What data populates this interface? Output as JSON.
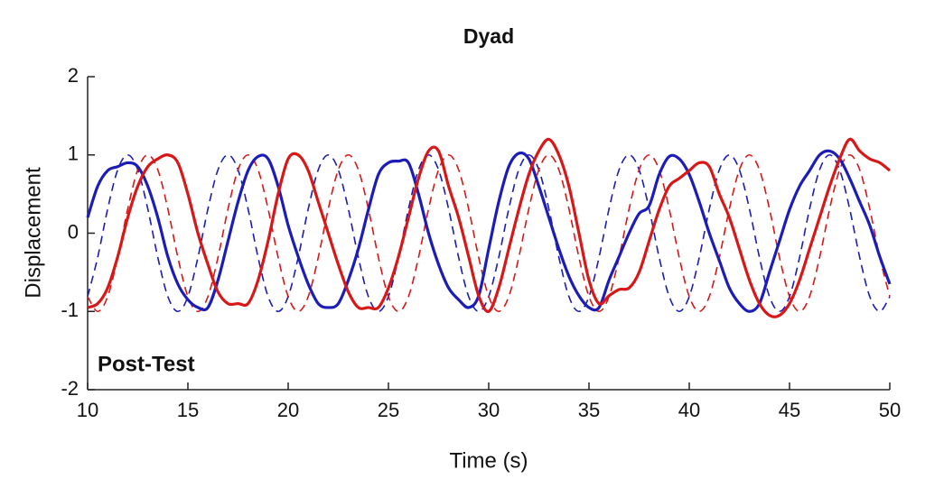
{
  "chart_data": {
    "type": "line",
    "title": "Dyad",
    "xlabel": "Time (s)",
    "ylabel": "Displacement",
    "annotation": "Post-Test",
    "x": [
      10,
      10.5,
      11,
      11.5,
      12,
      12.5,
      13,
      13.5,
      14,
      14.5,
      15,
      15.5,
      16,
      16.5,
      17,
      17.5,
      18,
      18.5,
      19,
      19.5,
      20,
      20.5,
      21,
      21.5,
      22,
      22.5,
      23,
      23.5,
      24,
      24.5,
      25,
      25.5,
      26,
      26.5,
      27,
      27.5,
      28,
      28.5,
      29,
      29.5,
      30,
      30.5,
      31,
      31.5,
      32,
      32.5,
      33,
      33.5,
      34,
      34.5,
      35,
      35.5,
      36,
      36.5,
      37,
      37.5,
      38,
      38.5,
      39,
      39.5,
      40,
      40.5,
      41,
      41.5,
      42,
      42.5,
      43,
      43.5,
      44,
      44.5,
      45,
      45.5,
      46,
      46.5,
      47,
      47.5,
      48,
      48.5,
      49,
      49.5,
      50
    ],
    "series": [
      {
        "color": "#1c1cb8",
        "linestyle": "dashed",
        "values": [
          -0.81,
          -0.31,
          0.31,
          0.81,
          1,
          0.81,
          0.31,
          -0.31,
          -0.81,
          -1,
          -0.81,
          -0.31,
          0.31,
          0.81,
          1,
          0.81,
          0.31,
          -0.31,
          -0.81,
          -1,
          -0.81,
          -0.31,
          0.31,
          0.81,
          1,
          0.81,
          0.31,
          -0.31,
          -0.81,
          -1,
          -0.81,
          -0.31,
          0.31,
          0.81,
          1,
          0.81,
          0.31,
          -0.31,
          -0.81,
          -1,
          -0.81,
          -0.31,
          0.31,
          0.81,
          1,
          0.81,
          0.31,
          -0.31,
          -0.81,
          -1,
          -0.81,
          -0.31,
          0.31,
          0.81,
          1,
          0.81,
          0.31,
          -0.31,
          -0.81,
          -1,
          -0.81,
          -0.31,
          0.31,
          0.81,
          1,
          0.81,
          0.31,
          -0.31,
          -0.81,
          -1,
          -0.81,
          -0.31,
          0.31,
          0.81,
          1,
          0.81,
          0.31,
          -0.31,
          -0.81,
          -1,
          -0.81
        ]
      },
      {
        "color": "#d81818",
        "linestyle": "dashed",
        "values": [
          -0.81,
          -1,
          -0.81,
          -0.31,
          0.31,
          0.81,
          1,
          0.81,
          0.31,
          -0.31,
          -0.81,
          -1,
          -0.81,
          -0.31,
          0.31,
          0.81,
          1,
          0.81,
          0.31,
          -0.31,
          -0.81,
          -1,
          -0.81,
          -0.31,
          0.31,
          0.81,
          1,
          0.81,
          0.31,
          -0.31,
          -0.81,
          -1,
          -0.81,
          -0.31,
          0.31,
          0.81,
          1,
          0.81,
          0.31,
          -0.31,
          -0.81,
          -1,
          -0.81,
          -0.31,
          0.31,
          0.81,
          1,
          0.81,
          0.31,
          -0.31,
          -0.81,
          -1,
          -0.81,
          -0.31,
          0.31,
          0.81,
          1,
          0.81,
          0.31,
          -0.31,
          -0.81,
          -1,
          -0.81,
          -0.31,
          0.31,
          0.81,
          1,
          0.81,
          0.31,
          -0.31,
          -0.81,
          -1,
          -0.81,
          -0.31,
          0.31,
          0.81,
          1,
          0.81,
          0.31,
          -0.31,
          -0.81
        ]
      },
      {
        "color": "#1c1cb8",
        "linestyle": "solid",
        "values": [
          0.2,
          0.6,
          0.8,
          0.85,
          0.9,
          0.85,
          0.6,
          0.2,
          -0.3,
          -0.65,
          -0.85,
          -0.95,
          -0.95,
          -0.6,
          -0.1,
          0.4,
          0.8,
          0.98,
          0.95,
          0.6,
          0.1,
          -0.3,
          -0.65,
          -0.9,
          -0.95,
          -0.9,
          -0.6,
          -0.2,
          0.3,
          0.75,
          0.9,
          0.92,
          0.9,
          0.5,
          0,
          -0.4,
          -0.7,
          -0.85,
          -0.95,
          -0.8,
          -0.2,
          0.4,
          0.85,
          1.02,
          0.95,
          0.6,
          0.2,
          -0.2,
          -0.55,
          -0.8,
          -0.95,
          -0.95,
          -0.6,
          -0.3,
          0,
          0.25,
          0.35,
          0.75,
          0.98,
          0.95,
          0.75,
          0.4,
          0,
          -0.35,
          -0.7,
          -0.9,
          -1,
          -0.9,
          -0.5,
          -0.1,
          0.3,
          0.6,
          0.8,
          1,
          1.05,
          0.95,
          0.7,
          0.4,
          0.1,
          -0.3,
          -0.65
        ]
      },
      {
        "color": "#d81818",
        "linestyle": "solid",
        "values": [
          -0.95,
          -0.9,
          -0.7,
          -0.3,
          0.2,
          0.6,
          0.85,
          0.95,
          1,
          0.9,
          0.5,
          0,
          -0.4,
          -0.75,
          -0.9,
          -0.9,
          -0.9,
          -0.6,
          -0.1,
          0.5,
          0.95,
          1,
          0.8,
          0.4,
          0,
          -0.4,
          -0.75,
          -0.95,
          -0.95,
          -0.95,
          -0.7,
          -0.3,
          0.2,
          0.7,
          1.05,
          1.05,
          0.6,
          0.2,
          -0.3,
          -0.8,
          -1,
          -0.7,
          -0.2,
          0.3,
          0.75,
          1.05,
          1.2,
          1,
          0.6,
          0,
          -0.6,
          -0.9,
          -0.8,
          -0.72,
          -0.7,
          -0.5,
          -0.1,
          0.3,
          0.6,
          0.7,
          0.8,
          0.9,
          0.85,
          0.5,
          0.2,
          -0.2,
          -0.6,
          -0.9,
          -1.05,
          -1.05,
          -0.9,
          -0.6,
          -0.2,
          0.2,
          0.6,
          0.95,
          1.2,
          1.05,
          0.95,
          0.9,
          0.8
        ]
      }
    ],
    "xlim": [
      10,
      50
    ],
    "ylim": [
      -2,
      2
    ],
    "xticks": [
      10,
      15,
      20,
      25,
      30,
      35,
      40,
      45,
      50
    ],
    "yticks": [
      -2,
      -1,
      0,
      1,
      2
    ]
  }
}
